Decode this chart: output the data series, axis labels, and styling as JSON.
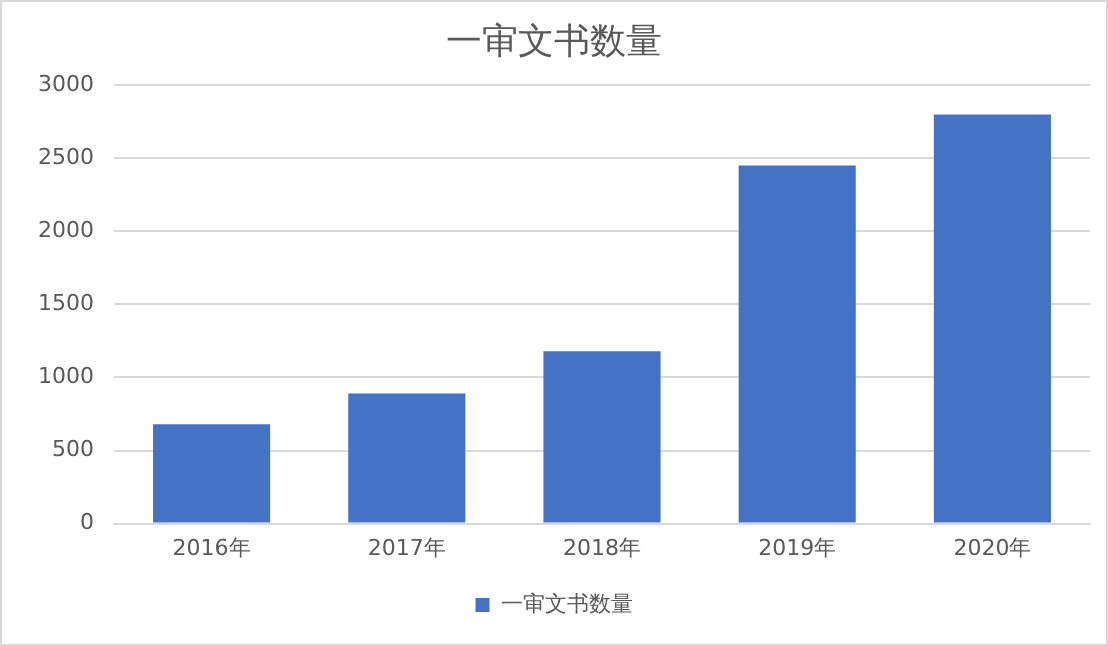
{
  "chart_data": {
    "type": "bar",
    "title": "一审文书数量",
    "categories": [
      "2016年",
      "2017年",
      "2018年",
      "2019年",
      "2020年"
    ],
    "series": [
      {
        "name": "一审文书数量",
        "color": "#4472c4",
        "values": [
          680,
          890,
          1180,
          2450,
          2800
        ]
      }
    ],
    "ylim": [
      0,
      3000
    ],
    "yticks": [
      0,
      500,
      1000,
      1500,
      2000,
      2500,
      3000
    ],
    "grid": "y",
    "legend": "bottom"
  }
}
